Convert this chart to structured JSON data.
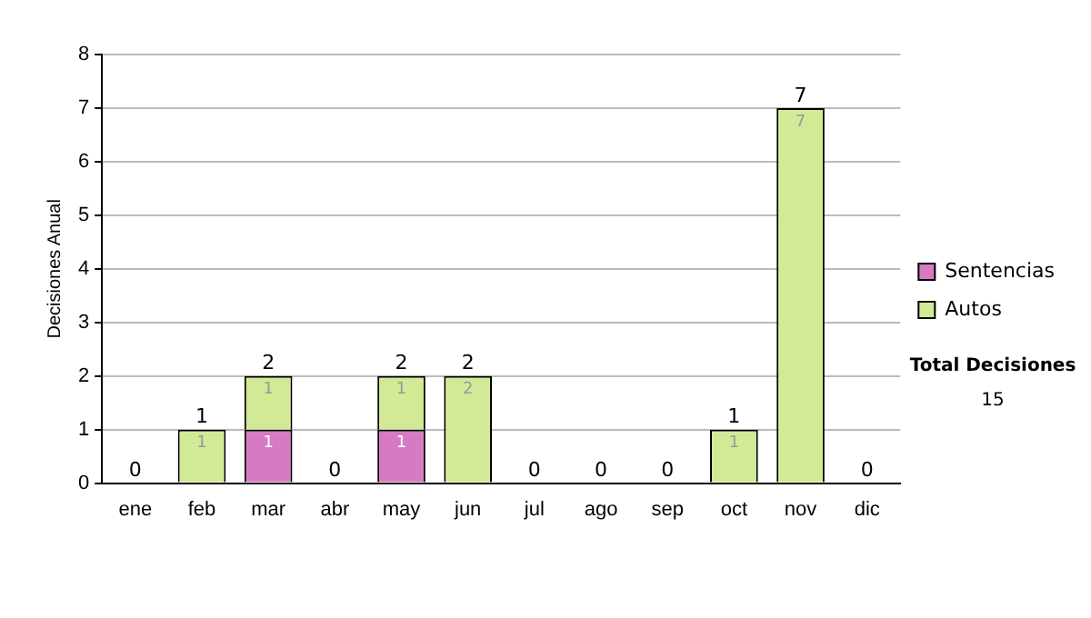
{
  "chart_data": {
    "type": "bar",
    "categories": [
      "ene",
      "feb",
      "mar",
      "abr",
      "may",
      "jun",
      "jul",
      "ago",
      "sep",
      "oct",
      "nov",
      "dic"
    ],
    "series": [
      {
        "name": "Sentencias",
        "color": "#d67ac4",
        "values": [
          0,
          0,
          1,
          0,
          1,
          0,
          0,
          0,
          0,
          0,
          0,
          0
        ],
        "value_labels": [
          null,
          null,
          "1",
          null,
          "1",
          null,
          null,
          null,
          null,
          null,
          null,
          null
        ]
      },
      {
        "name": "Autos",
        "color": "#d2e996",
        "values": [
          0,
          1,
          1,
          0,
          1,
          2,
          0,
          0,
          0,
          1,
          7,
          0
        ],
        "value_labels": [
          null,
          "1",
          "1",
          null,
          "1",
          "2",
          null,
          null,
          null,
          "1",
          "7",
          null
        ]
      }
    ],
    "stacked": true,
    "ylim": [
      0,
      8
    ],
    "yticks": [
      0,
      1,
      2,
      3,
      4,
      5,
      6,
      7,
      8
    ],
    "ylabel": "Decisiones Anual",
    "grid": "y",
    "legend": "right",
    "totals": [
      "0",
      "1",
      "2",
      "0",
      "2",
      "2",
      "0",
      "0",
      "0",
      "1",
      "7",
      "0"
    ],
    "annotations": [
      "Total Decisiones",
      "15"
    ]
  }
}
